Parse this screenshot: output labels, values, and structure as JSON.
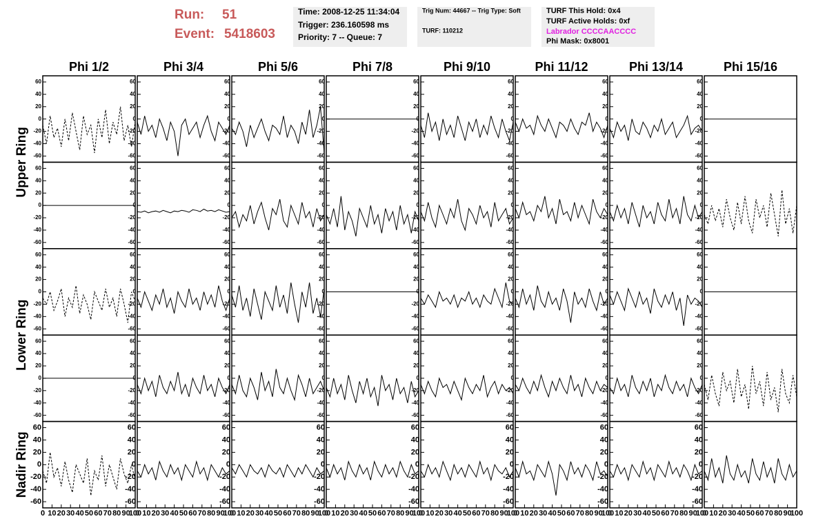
{
  "header": {
    "run_label": "Run:",
    "run": "51",
    "event_label": "Event:",
    "event": "5418603",
    "boxes": [
      [
        "Time: 2008-12-25 11:34:04",
        "Trigger: 236.160598 ms",
        "Priority: 7 -- Queue: 7"
      ],
      [
        "Trig Num: 44667 -- Trig Type: Soft",
        "TURF: 110212"
      ],
      [
        "TURF This Hold: 0x4",
        "TURF Active Holds: 0xf",
        "Labrador CCCCAACCCC",
        "Phi Mask: 0x8001"
      ]
    ]
  },
  "chart_data": {
    "type": "line",
    "columns": [
      "Phi 1/2",
      "Phi 3/4",
      "Phi 5/6",
      "Phi 7/8",
      "Phi 9/10",
      "Phi 11/12",
      "Phi 13/14",
      "Phi 15/16"
    ],
    "rows": [
      "Upper Ring",
      "Lower Ring",
      "Nadir Ring"
    ],
    "color": "#000000",
    "xlim": [
      0,
      100
    ],
    "xticks": [
      0,
      10,
      20,
      30,
      40,
      50,
      60,
      70,
      80,
      90,
      100
    ],
    "ylim": [
      -70,
      70
    ],
    "yticks": [
      -60,
      -40,
      -20,
      0,
      20,
      40,
      60
    ],
    "x": [
      0,
      4,
      8,
      12,
      16,
      20,
      24,
      28,
      32,
      36,
      40,
      44,
      48,
      52,
      56,
      60,
      64,
      68,
      72,
      76,
      80,
      84,
      88,
      92,
      96,
      100
    ],
    "series": [
      {
        "dashed": true,
        "values": [
          -10,
          -40,
          5,
          -30,
          -15,
          -45,
          0,
          -35,
          10,
          -20,
          -50,
          5,
          -25,
          -10,
          -55,
          0,
          -30,
          15,
          -40,
          -5,
          -25,
          20,
          -35,
          -10,
          -45,
          -5
        ]
      },
      {
        "values": [
          -5,
          -25,
          5,
          -20,
          -10,
          -30,
          0,
          -15,
          -35,
          -5,
          -20,
          -60,
          -10,
          0,
          -25,
          -15,
          -5,
          -30,
          -10,
          5,
          -20,
          -35,
          -5,
          -15,
          -25,
          -10
        ]
      },
      {
        "values": [
          -15,
          -25,
          -5,
          -20,
          -45,
          -10,
          -30,
          -15,
          0,
          -20,
          -35,
          -10,
          -15,
          -25,
          5,
          -30,
          -10,
          -20,
          -40,
          -5,
          -25,
          15,
          -30,
          -10,
          20,
          -55
        ]
      },
      {
        "values": [
          0,
          0,
          0,
          0,
          0,
          0,
          0,
          0,
          0,
          0,
          0,
          0,
          0,
          0,
          0,
          0,
          0,
          0,
          0,
          0,
          0,
          0,
          0,
          0,
          0,
          0
        ]
      },
      {
        "values": [
          -10,
          -30,
          10,
          -20,
          -5,
          -35,
          0,
          -25,
          -10,
          -30,
          5,
          -15,
          -35,
          -5,
          -20,
          0,
          -30,
          -10,
          -25,
          5,
          -15,
          -30,
          0,
          -20,
          -35,
          -5
        ]
      },
      {
        "values": [
          -5,
          -20,
          0,
          -15,
          -10,
          -25,
          5,
          -10,
          -20,
          0,
          -15,
          -30,
          -5,
          -10,
          -20,
          0,
          -15,
          -25,
          -5,
          -10,
          10,
          -20,
          -5,
          -15,
          -30,
          -10
        ]
      },
      {
        "values": [
          -15,
          -30,
          -5,
          -20,
          -10,
          -35,
          0,
          -20,
          -25,
          -5,
          -15,
          -30,
          -10,
          -20,
          0,
          -25,
          -15,
          -5,
          -30,
          -20,
          -10,
          5,
          -25,
          -15,
          -10,
          -20
        ]
      },
      {
        "values": [
          0,
          0,
          0,
          0,
          0,
          0,
          0,
          0,
          0,
          0,
          0,
          0,
          0,
          0,
          0,
          0,
          0,
          0,
          0,
          0,
          0,
          0,
          0,
          0,
          0,
          0
        ]
      },
      {
        "values": [
          0,
          0,
          0,
          0,
          0,
          0,
          0,
          0,
          0,
          0,
          0,
          0,
          0,
          0,
          0,
          0,
          0,
          0,
          0,
          0,
          0,
          0,
          0,
          0,
          0,
          0
        ]
      },
      {
        "values": [
          -10,
          -11,
          -9,
          -12,
          -10,
          -9,
          -11,
          -8,
          -10,
          -12,
          -9,
          -10,
          -8,
          -9,
          -11,
          -7,
          -8,
          -10,
          -6,
          -9,
          -8,
          -10,
          -7,
          -9,
          -11,
          -10
        ]
      },
      {
        "values": [
          -20,
          -10,
          -35,
          -15,
          -25,
          0,
          -30,
          -10,
          5,
          -20,
          -40,
          -5,
          -15,
          10,
          -25,
          -35,
          0,
          -15,
          -30,
          5,
          -20,
          -10,
          -35,
          -5,
          -25,
          -15
        ]
      },
      {
        "values": [
          -15,
          -30,
          -5,
          -35,
          15,
          -40,
          -10,
          -25,
          -50,
          -5,
          -20,
          -35,
          0,
          -30,
          -15,
          -45,
          -5,
          -25,
          -10,
          -40,
          0,
          -30,
          -15,
          -45,
          -10,
          -25
        ]
      },
      {
        "values": [
          -10,
          -25,
          5,
          -20,
          -35,
          0,
          -15,
          -30,
          -5,
          -20,
          10,
          -25,
          -40,
          -5,
          -15,
          -30,
          0,
          -20,
          -10,
          -35,
          5,
          -25,
          -15,
          -5,
          -30,
          -20
        ]
      },
      {
        "values": [
          -5,
          -20,
          5,
          -15,
          -10,
          -25,
          0,
          -10,
          15,
          -20,
          -5,
          -30,
          10,
          -15,
          -10,
          -25,
          5,
          -20,
          0,
          -15,
          -30,
          10,
          -10,
          -20,
          -5,
          -15
        ]
      },
      {
        "values": [
          -10,
          -25,
          0,
          -20,
          -5,
          -30,
          5,
          -15,
          -35,
          0,
          -20,
          -10,
          -30,
          5,
          -15,
          -25,
          10,
          -20,
          -5,
          -30,
          15,
          -15,
          -25,
          0,
          -20,
          -10
        ]
      },
      {
        "dashed": true,
        "values": [
          -15,
          -30,
          0,
          -25,
          -5,
          -35,
          10,
          -20,
          -40,
          5,
          -30,
          15,
          -25,
          -45,
          10,
          -20,
          0,
          -35,
          20,
          -15,
          -50,
          25,
          -30,
          -5,
          -45,
          0
        ]
      },
      {
        "dashed": true,
        "values": [
          -10,
          -20,
          0,
          -30,
          -15,
          5,
          -40,
          -10,
          -25,
          10,
          -35,
          -5,
          -20,
          -45,
          0,
          -15,
          -30,
          5,
          -25,
          -10,
          -40,
          5,
          -20,
          -50,
          0,
          -15
        ]
      },
      {
        "values": [
          -10,
          -25,
          0,
          -15,
          -30,
          -5,
          -20,
          5,
          -25,
          -10,
          -35,
          0,
          -15,
          -25,
          5,
          -20,
          -10,
          -30,
          0,
          -20,
          -5,
          -25,
          10,
          -15,
          -30,
          -10
        ]
      },
      {
        "values": [
          -5,
          -25,
          10,
          -30,
          -10,
          -40,
          5,
          -20,
          -45,
          0,
          -15,
          -30,
          10,
          -25,
          -5,
          -35,
          15,
          -20,
          -50,
          0,
          -25,
          15,
          -35,
          -10,
          -40,
          5
        ]
      },
      {
        "values": [
          0,
          0,
          0,
          0,
          0,
          0,
          0,
          0,
          0,
          0,
          0,
          0,
          0,
          0,
          0,
          0,
          0,
          0,
          0,
          0,
          0,
          0,
          0,
          0,
          0,
          0
        ]
      },
      {
        "values": [
          -10,
          -20,
          -5,
          -15,
          -25,
          0,
          -15,
          -10,
          -20,
          -5,
          -25,
          -10,
          -15,
          0,
          -20,
          -10,
          -25,
          -5,
          -15,
          -20,
          5,
          -10,
          -25,
          15,
          -15,
          -20
        ]
      },
      {
        "values": [
          -10,
          -25,
          5,
          -20,
          -5,
          -30,
          10,
          -15,
          -25,
          0,
          -20,
          -10,
          -30,
          5,
          -15,
          -50,
          0,
          -20,
          -10,
          -25,
          5,
          -15,
          -30,
          0,
          -20,
          -10
        ]
      },
      {
        "values": [
          -5,
          -20,
          0,
          -15,
          -30,
          5,
          -10,
          -25,
          0,
          -20,
          -10,
          -35,
          5,
          -15,
          -25,
          -5,
          -20,
          0,
          -30,
          -10,
          -55,
          -5,
          -20,
          -10,
          -15,
          -25
        ]
      },
      {
        "values": [
          0,
          0,
          0,
          0,
          0,
          0,
          0,
          0,
          0,
          0,
          0,
          0,
          0,
          0,
          0,
          0,
          0,
          0,
          0,
          0,
          0,
          0,
          0,
          0,
          0,
          0
        ]
      },
      {
        "values": [
          0,
          0,
          0,
          0,
          0,
          0,
          0,
          0,
          0,
          0,
          0,
          0,
          0,
          0,
          0,
          0,
          0,
          0,
          0,
          0,
          0,
          0,
          0,
          0,
          0,
          0
        ]
      },
      {
        "values": [
          -10,
          -25,
          0,
          -20,
          -5,
          -30,
          5,
          -15,
          -25,
          -5,
          -20,
          10,
          -25,
          -10,
          -30,
          0,
          -15,
          -25,
          5,
          -20,
          -10,
          -30,
          0,
          -15,
          -25,
          -10
        ]
      },
      {
        "values": [
          -10,
          -25,
          5,
          -20,
          -30,
          0,
          -15,
          -35,
          10,
          -20,
          -5,
          -30,
          15,
          -15,
          -25,
          0,
          -20,
          -35,
          5,
          -10,
          -30,
          0,
          -25,
          -15,
          -5,
          -20
        ]
      },
      {
        "values": [
          -15,
          -30,
          0,
          -25,
          -10,
          -35,
          5,
          -20,
          -40,
          -5,
          -25,
          0,
          -30,
          -15,
          -45,
          5,
          -20,
          -10,
          -35,
          0,
          -25,
          -15,
          -40,
          -5,
          -30,
          -20
        ]
      },
      {
        "values": [
          -10,
          -25,
          -5,
          -20,
          -30,
          0,
          -15,
          -10,
          -25,
          -5,
          -20,
          -35,
          0,
          -15,
          -25,
          -10,
          -20,
          5,
          -30,
          -15,
          -5,
          -25,
          -10,
          -20,
          -15,
          -25
        ]
      },
      {
        "values": [
          -10,
          -20,
          0,
          -15,
          -25,
          -5,
          -20,
          5,
          -15,
          -30,
          -5,
          -20,
          0,
          -15,
          -25,
          5,
          -20,
          -10,
          -30,
          0,
          -15,
          -25,
          -5,
          -20,
          -10,
          -15
        ]
      },
      {
        "values": [
          -15,
          -25,
          0,
          -20,
          -10,
          -30,
          5,
          -15,
          -25,
          -5,
          -20,
          0,
          -30,
          -10,
          -20,
          5,
          -15,
          -25,
          -5,
          -20,
          -10,
          -30,
          0,
          -15,
          -25,
          -10
        ]
      },
      {
        "dashed": true,
        "values": [
          -10,
          -35,
          5,
          -25,
          -45,
          10,
          -20,
          -5,
          -40,
          15,
          -30,
          -10,
          -50,
          20,
          -25,
          -5,
          -45,
          10,
          -35,
          -15,
          -55,
          15,
          -25,
          -40,
          5,
          -30
        ]
      },
      {
        "dashed": true,
        "values": [
          -10,
          -30,
          20,
          -20,
          -5,
          -35,
          5,
          -25,
          -45,
          0,
          -15,
          -30,
          10,
          -50,
          -10,
          -25,
          15,
          -35,
          0,
          -20,
          -40,
          10,
          -15,
          -30,
          0,
          -25
        ]
      },
      {
        "values": [
          -10,
          -20,
          0,
          -15,
          -5,
          -25,
          5,
          -10,
          -20,
          0,
          -15,
          -5,
          -25,
          0,
          -10,
          -20,
          5,
          -15,
          -5,
          -25,
          0,
          -10,
          -20,
          -5,
          -15,
          -10
        ]
      },
      {
        "values": [
          -5,
          -15,
          0,
          -10,
          -20,
          0,
          -10,
          -15,
          -5,
          -20,
          0,
          -10,
          -15,
          -5,
          -20,
          0,
          -10,
          -20,
          -5,
          -15,
          0,
          -10,
          -20,
          -5,
          -15,
          -10
        ]
      },
      {
        "values": [
          -5,
          -20,
          0,
          -15,
          -5,
          -25,
          5,
          -10,
          -20,
          0,
          -15,
          -5,
          -25,
          5,
          -10,
          -20,
          0,
          -15,
          -5,
          -20,
          5,
          -10,
          -20,
          0,
          -15,
          -10
        ]
      },
      {
        "values": [
          -10,
          -20,
          0,
          -15,
          -5,
          -20,
          5,
          -10,
          -25,
          0,
          -15,
          -5,
          -20,
          0,
          -10,
          -20,
          5,
          -15,
          -5,
          -25,
          0,
          -10,
          -15,
          -5,
          -20,
          -10
        ]
      },
      {
        "values": [
          -5,
          -20,
          5,
          -15,
          -10,
          -25,
          0,
          -10,
          -20,
          5,
          -15,
          -50,
          0,
          -10,
          -25,
          5,
          -15,
          -5,
          -20,
          0,
          -10,
          -25,
          5,
          -15,
          -10,
          -20
        ]
      },
      {
        "values": [
          -10,
          -20,
          0,
          -15,
          -5,
          -25,
          0,
          -10,
          -20,
          5,
          -15,
          -5,
          -25,
          0,
          -10,
          -20,
          5,
          -15,
          -5,
          -20,
          0,
          -10,
          -25,
          0,
          -15,
          -10
        ]
      },
      {
        "values": [
          -10,
          -25,
          10,
          -20,
          -5,
          -30,
          15,
          -15,
          -25,
          0,
          -20,
          -10,
          -30,
          10,
          -15,
          -25,
          5,
          -20,
          -5,
          -30,
          10,
          -15,
          -25,
          0,
          -20,
          -10
        ]
      }
    ]
  }
}
